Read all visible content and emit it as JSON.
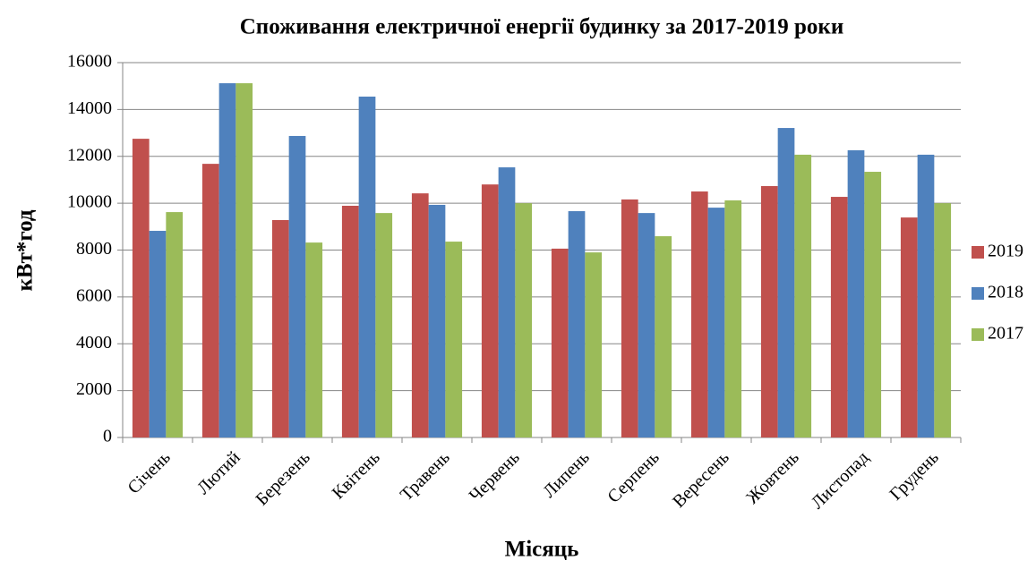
{
  "chart_data": {
    "type": "bar",
    "title": "Споживання електричної енергії будинку за 2017-2019 роки",
    "x_label": "Місяць",
    "y_label": "кВт*год",
    "categories": [
      "Січень",
      "Лютий",
      "Березень",
      "Квітень",
      "Травень",
      "Червень",
      "Липень",
      "Серпень",
      "Вересень",
      "Жовтень",
      "Листопад",
      "Грудень"
    ],
    "series": [
      {
        "name": "2019",
        "color": "#c0504d",
        "values": [
          12750,
          11680,
          9280,
          9890,
          10420,
          10800,
          8060,
          10160,
          10500,
          10730,
          10270,
          9390
        ]
      },
      {
        "name": "2018",
        "color": "#4f81bd",
        "values": [
          8820,
          15120,
          12870,
          14550,
          9930,
          11530,
          9660,
          9580,
          9810,
          13210,
          12260,
          12070
        ]
      },
      {
        "name": "2017",
        "color": "#9bbb59",
        "values": [
          9620,
          15120,
          8320,
          9580,
          8360,
          10000,
          7900,
          8590,
          10120,
          12070,
          11340,
          10000
        ]
      }
    ],
    "ylim": [
      0,
      16000
    ],
    "yticks": [
      0,
      2000,
      4000,
      6000,
      8000,
      10000,
      12000,
      14000,
      16000
    ],
    "grid": true,
    "legend": "right"
  }
}
